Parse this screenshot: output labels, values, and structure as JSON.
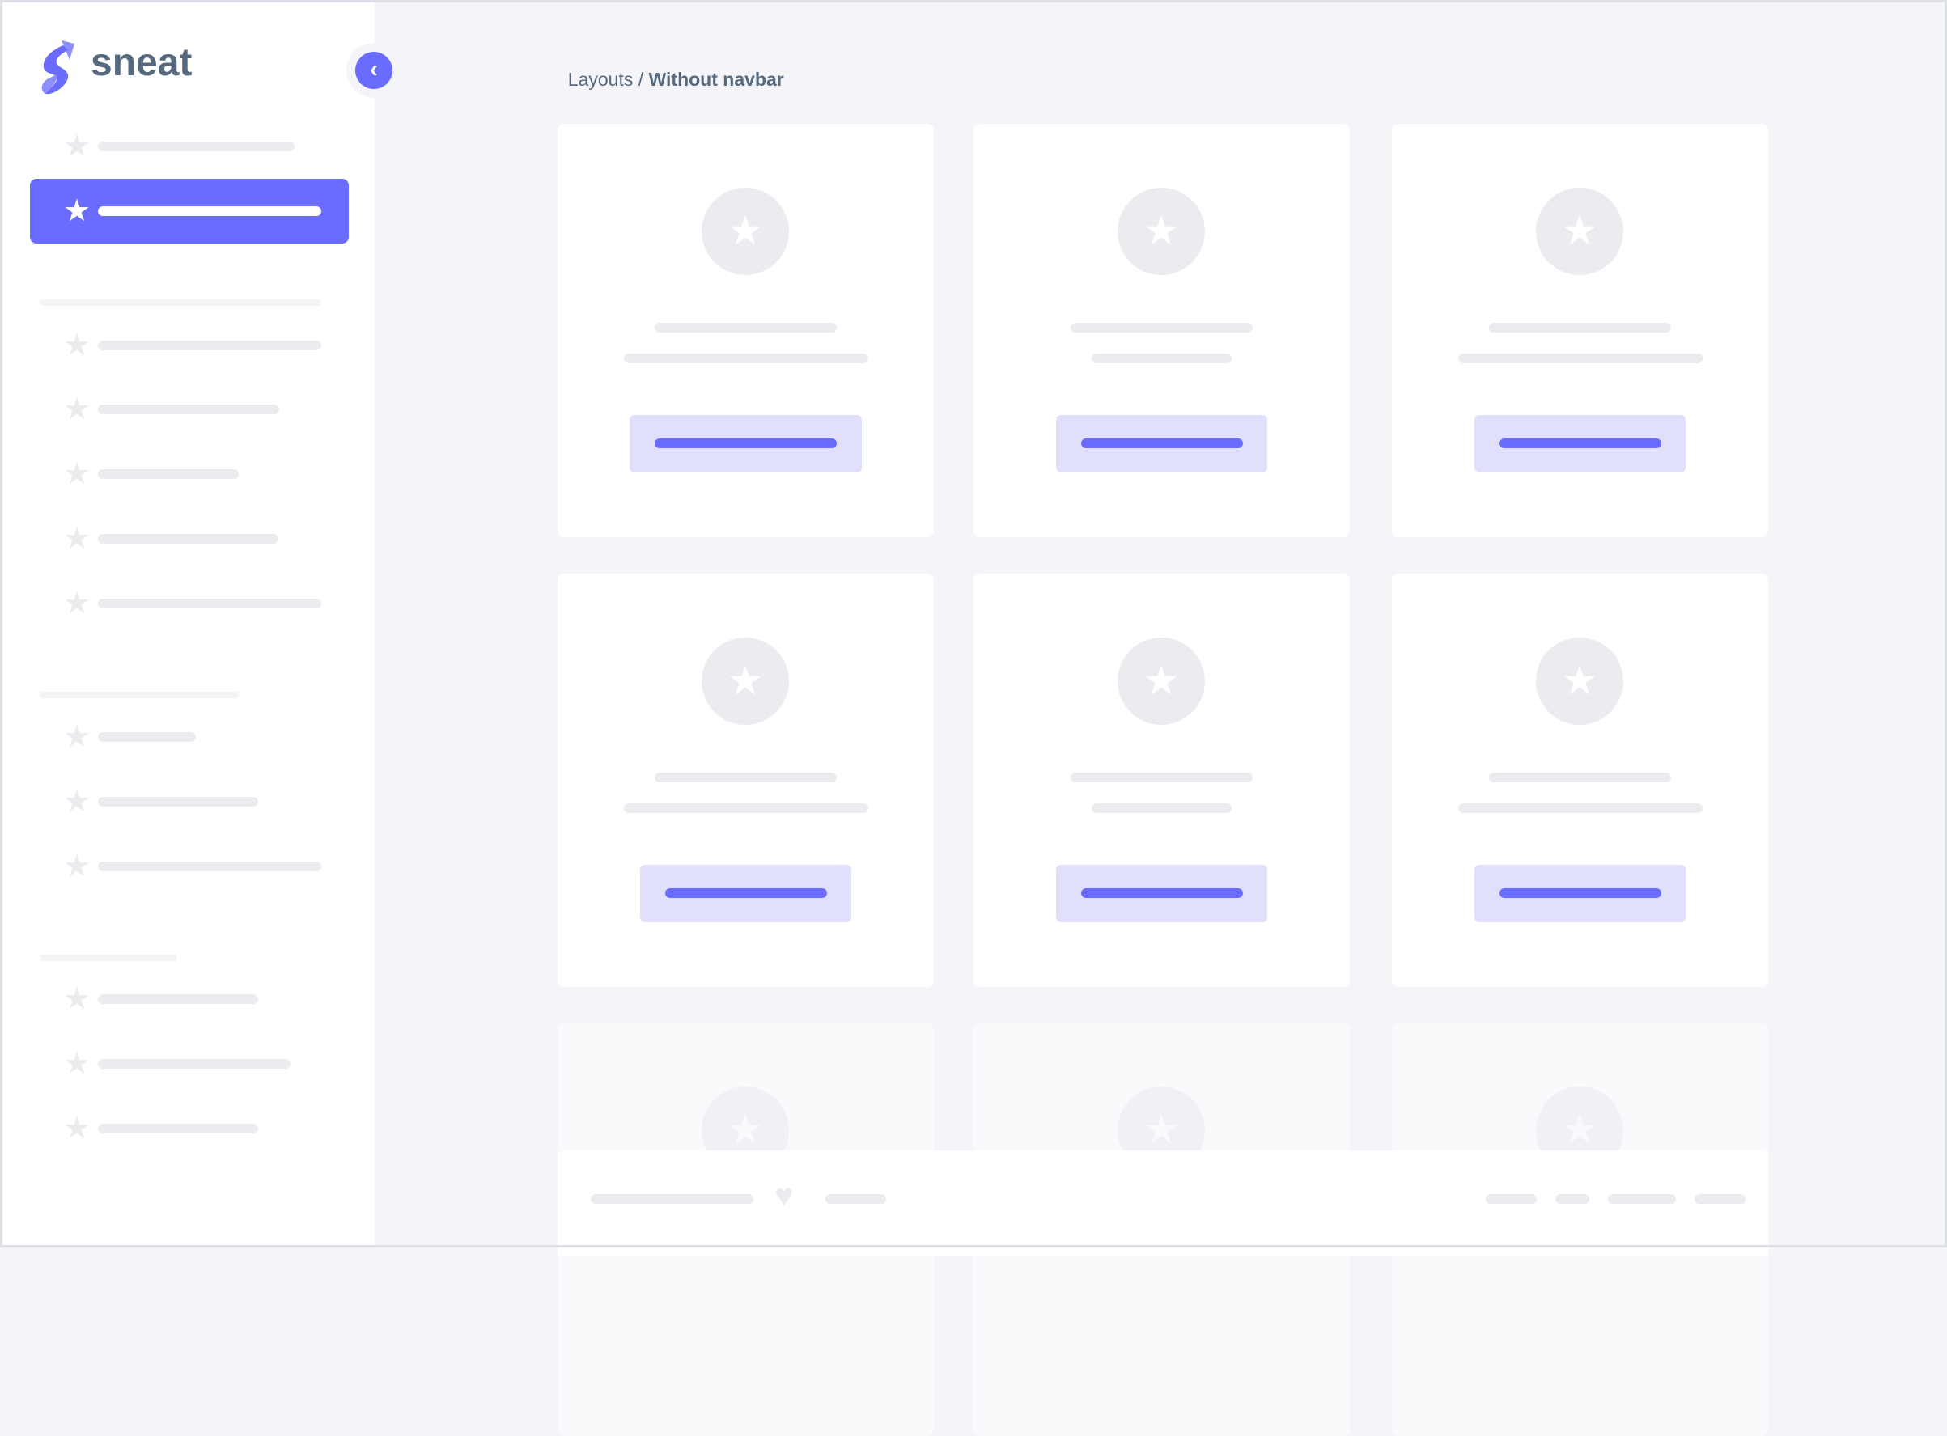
{
  "brand": {
    "name": "sneat",
    "logo_icon": "sneat-s-logo",
    "color": "#696cff",
    "text_color": "#566a7f"
  },
  "sidebar": {
    "toggle_icon": "chevron-left-icon",
    "active_index": 1
  },
  "breadcrumb": {
    "parent": "Layouts",
    "separator": " / ",
    "current": "Without navbar"
  },
  "footer": {
    "icon": "heart-icon"
  },
  "colors": {
    "accent": "#696cff",
    "accent_light": "#e0e0fc",
    "placeholder": "#ebecf0",
    "background": "#f4f4f9"
  }
}
